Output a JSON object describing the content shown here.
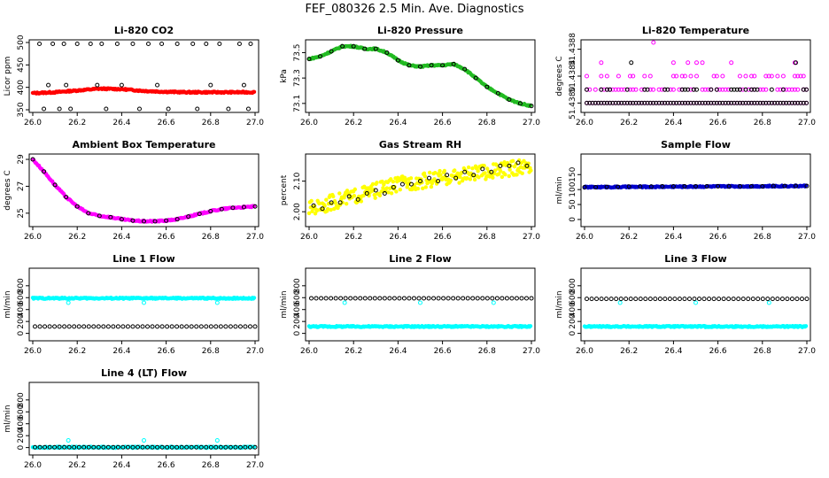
{
  "main_title": "FEF_080326  2.5 Min. Ave. Diagnostics",
  "colors": {
    "red": "#ff0000",
    "green": "#22bb22",
    "magenta": "#ff00ff",
    "yellow": "#ffff00",
    "blue": "#0000cc",
    "cyan": "#00ffff",
    "black": "#000000"
  },
  "chart_data": [
    {
      "type": "scatter",
      "title": "Li-820 CO2",
      "xlabel": "",
      "ylabel": "Licor ppm",
      "xlim": [
        26.0,
        27.0
      ],
      "ylim": [
        350,
        500
      ],
      "xticks": [
        "26.0",
        "26.2",
        "26.4",
        "26.6",
        "26.8",
        "27.0"
      ],
      "yticks": [
        "350",
        "400",
        "450",
        "500"
      ],
      "series": [
        {
          "color": "red",
          "style": "dense",
          "x": [
            26.0,
            26.1,
            26.2,
            26.3,
            26.4,
            26.5,
            26.6,
            26.7,
            26.8,
            26.9,
            27.0
          ],
          "y": [
            387,
            389,
            393,
            397,
            396,
            392,
            390,
            389,
            389,
            389,
            389
          ]
        },
        {
          "color": "black",
          "style": "open",
          "x": [
            26.03,
            26.09,
            26.14,
            26.2,
            26.26,
            26.31,
            26.38,
            26.45,
            26.52,
            26.58,
            26.65,
            26.72,
            26.78,
            26.84,
            26.93,
            26.98,
            26.05,
            26.12,
            26.17,
            26.33,
            26.48,
            26.61,
            26.74,
            26.88,
            26.97,
            26.07,
            26.15,
            26.29,
            26.4,
            26.56,
            26.8,
            26.95
          ],
          "y": [
            497,
            497,
            497,
            497,
            497,
            497,
            497,
            497,
            497,
            497,
            497,
            497,
            497,
            497,
            497,
            497,
            352,
            352,
            352,
            352,
            352,
            352,
            352,
            352,
            352,
            405,
            405,
            405,
            405,
            405,
            405,
            405
          ]
        }
      ]
    },
    {
      "type": "scatter",
      "title": "Li-820 Pressure",
      "xlabel": "",
      "ylabel": "kPa",
      "xlim": [
        26.0,
        27.0
      ],
      "ylim": [
        73.05,
        73.58
      ],
      "xticks": [
        "26.0",
        "26.2",
        "26.4",
        "26.6",
        "26.8",
        "27.0"
      ],
      "yticks": [
        "73.1",
        "73.3",
        "73.5"
      ],
      "yticks_at": [
        73.1,
        73.3,
        73.5
      ],
      "series": [
        {
          "color": "green",
          "style": "dense",
          "x": [
            26.0,
            26.05,
            26.1,
            26.15,
            26.2,
            26.25,
            26.3,
            26.35,
            26.4,
            26.45,
            26.5,
            26.55,
            26.6,
            26.65,
            26.7,
            26.75,
            26.8,
            26.85,
            26.9,
            26.95,
            27.0
          ],
          "y": [
            73.45,
            73.47,
            73.51,
            73.55,
            73.55,
            73.53,
            73.53,
            73.5,
            73.44,
            73.4,
            73.39,
            73.4,
            73.4,
            73.41,
            73.37,
            73.3,
            73.23,
            73.18,
            73.13,
            73.1,
            73.08
          ]
        },
        {
          "color": "black",
          "style": "open",
          "x": [
            26.0,
            26.05,
            26.1,
            26.15,
            26.2,
            26.25,
            26.3,
            26.35,
            26.4,
            26.45,
            26.5,
            26.55,
            26.6,
            26.65,
            26.7,
            26.75,
            26.8,
            26.85,
            26.9,
            26.95,
            27.0
          ],
          "y": [
            73.45,
            73.47,
            73.51,
            73.55,
            73.55,
            73.53,
            73.53,
            73.5,
            73.44,
            73.4,
            73.39,
            73.4,
            73.4,
            73.41,
            73.37,
            73.3,
            73.23,
            73.18,
            73.13,
            73.1,
            73.08
          ]
        }
      ]
    },
    {
      "type": "scatter",
      "title": "Li-820 Temperature",
      "xlabel": "",
      "ylabel": "degrees C",
      "xlim": [
        26.0,
        27.0
      ],
      "ylim": [
        51.4379,
        51.4389
      ],
      "xticks": [
        "26.0",
        "26.2",
        "26.4",
        "26.6",
        "26.8",
        "27.0"
      ],
      "yticks": [
        "51.4380",
        "51.4384",
        "51.4388"
      ],
      "yticks_at": [
        51.438,
        51.4384,
        51.4388
      ],
      "series": [
        {
          "color": "magenta",
          "style": "rows",
          "rows": [
            51.438,
            51.4382,
            51.4384,
            51.4386
          ],
          "density": [
            1.0,
            0.6,
            0.35,
            0.12
          ]
        },
        {
          "color": "black",
          "style": "rows",
          "rows": [
            51.438,
            51.4382
          ],
          "density": [
            1.0,
            0.45
          ]
        },
        {
          "color": "magenta",
          "style": "open",
          "x": [
            26.31
          ],
          "y": [
            51.4389
          ]
        },
        {
          "color": "black",
          "style": "open",
          "x": [
            26.21,
            26.95
          ],
          "y": [
            51.4386,
            51.4386
          ]
        }
      ]
    },
    {
      "type": "scatter",
      "title": "Ambient Box Temperature",
      "xlabel": "",
      "ylabel": "degrees C",
      "xlim": [
        26.0,
        27.0
      ],
      "ylim": [
        24.2,
        29.2
      ],
      "xticks": [
        "26.0",
        "26.2",
        "26.4",
        "26.6",
        "26.8",
        "27.0"
      ],
      "yticks": [
        "25",
        "27",
        "29"
      ],
      "yticks_at": [
        25,
        27,
        29
      ],
      "series": [
        {
          "color": "magenta",
          "style": "dense",
          "x": [
            26.0,
            26.05,
            26.1,
            26.15,
            26.2,
            26.25,
            26.3,
            26.35,
            26.4,
            26.45,
            26.5,
            26.55,
            26.6,
            26.65,
            26.7,
            26.75,
            26.8,
            26.85,
            26.9,
            26.95,
            27.0
          ],
          "y": [
            29.0,
            28.1,
            27.1,
            26.2,
            25.5,
            25.0,
            24.8,
            24.7,
            24.55,
            24.45,
            24.4,
            24.4,
            24.45,
            24.55,
            24.75,
            24.95,
            25.15,
            25.3,
            25.4,
            25.45,
            25.5
          ]
        },
        {
          "color": "black",
          "style": "open",
          "x": [
            26.0,
            26.05,
            26.1,
            26.15,
            26.2,
            26.25,
            26.3,
            26.35,
            26.4,
            26.45,
            26.5,
            26.55,
            26.6,
            26.65,
            26.7,
            26.75,
            26.8,
            26.85,
            26.9,
            26.95,
            27.0
          ],
          "y": [
            29.0,
            28.1,
            27.1,
            26.2,
            25.5,
            25.0,
            24.8,
            24.7,
            24.55,
            24.45,
            24.4,
            24.4,
            24.45,
            24.55,
            24.75,
            24.95,
            25.15,
            25.3,
            25.4,
            25.45,
            25.5
          ]
        }
      ]
    },
    {
      "type": "scatter",
      "title": "Gas Stream RH",
      "xlabel": "",
      "ylabel": "percent",
      "xlim": [
        26.0,
        27.0
      ],
      "ylim": [
        1.96,
        2.18
      ],
      "xticks": [
        "26.0",
        "26.2",
        "26.4",
        "26.6",
        "26.8",
        "27.0"
      ],
      "yticks": [
        "2.00",
        "2.10"
      ],
      "yticks_at": [
        2.0,
        2.1
      ],
      "series": [
        {
          "color": "yellow",
          "style": "band",
          "x": [
            26.0,
            26.1,
            26.2,
            26.3,
            26.4,
            26.5,
            26.6,
            26.7,
            26.8,
            26.9,
            27.0
          ],
          "y": [
            2.01,
            2.03,
            2.05,
            2.07,
            2.09,
            2.1,
            2.11,
            2.12,
            2.13,
            2.14,
            2.15
          ],
          "spread": 0.025
        },
        {
          "color": "black",
          "style": "open",
          "x": [
            26.02,
            26.06,
            26.1,
            26.14,
            26.18,
            26.22,
            26.26,
            26.3,
            26.34,
            26.38,
            26.42,
            26.46,
            26.5,
            26.54,
            26.58,
            26.62,
            26.66,
            26.7,
            26.74,
            26.78,
            26.82,
            26.86,
            26.9,
            26.94,
            26.98
          ],
          "y": [
            2.02,
            2.01,
            2.03,
            2.03,
            2.05,
            2.04,
            2.06,
            2.07,
            2.06,
            2.08,
            2.09,
            2.09,
            2.1,
            2.11,
            2.1,
            2.12,
            2.11,
            2.13,
            2.12,
            2.14,
            2.13,
            2.15,
            2.15,
            2.16,
            2.15
          ]
        }
      ]
    },
    {
      "type": "scatter",
      "title": "Sample Flow",
      "xlabel": "",
      "ylabel": "ml/min",
      "xlim": [
        26.0,
        27.0
      ],
      "ylim": [
        -15,
        210
      ],
      "xticks": [
        "26.0",
        "26.2",
        "26.4",
        "26.6",
        "26.8",
        "27.0"
      ],
      "yticks": [
        "0",
        "50",
        "100",
        "150"
      ],
      "yticks_at": [
        0,
        50,
        100,
        150
      ],
      "series": [
        {
          "color": "blue",
          "style": "dense",
          "x": [
            26.0,
            27.0
          ],
          "y": [
            108,
            112
          ]
        },
        {
          "color": "black",
          "style": "open",
          "x": [
            26.0,
            26.05,
            26.1,
            26.15,
            26.2,
            26.25,
            26.3,
            26.35,
            26.4,
            26.45,
            26.5,
            26.55,
            26.6,
            26.65,
            26.7,
            26.75,
            26.8,
            26.85,
            26.9,
            26.95,
            27.0
          ],
          "y": [
            108,
            108,
            109,
            109,
            110,
            110,
            110,
            111,
            111,
            111,
            111,
            111,
            111,
            111,
            111,
            111,
            111,
            112,
            112,
            112,
            112
          ]
        }
      ]
    },
    {
      "type": "scatter",
      "title": "Line 1 Flow",
      "xlabel": "",
      "ylabel": "ml/min",
      "xlim": [
        26.0,
        27.0
      ],
      "ylim": [
        -80,
        1050
      ],
      "xticks": [
        "26.0",
        "26.2",
        "26.4",
        "26.6",
        "26.8",
        "27.0"
      ],
      "yticks": [
        "0",
        "200",
        "400",
        "600",
        "800"
      ],
      "yticks_at": [
        0,
        200,
        400,
        600,
        800
      ],
      "series": [
        {
          "color": "cyan",
          "style": "dense",
          "x": [
            26.0,
            27.0
          ],
          "y": [
            590,
            590
          ]
        },
        {
          "color": "cyan",
          "style": "open",
          "x": [
            26.16,
            26.5,
            26.83
          ],
          "y": [
            515,
            515,
            515
          ]
        },
        {
          "color": "black",
          "style": "open-line",
          "x": [
            26.0,
            27.0
          ],
          "y": [
            115,
            115
          ]
        }
      ]
    },
    {
      "type": "scatter",
      "title": "Line 2 Flow",
      "xlabel": "",
      "ylabel": "ml/min",
      "xlim": [
        26.0,
        27.0
      ],
      "ylim": [
        -80,
        1050
      ],
      "xticks": [
        "26.0",
        "26.2",
        "26.4",
        "26.6",
        "26.8",
        "27.0"
      ],
      "yticks": [
        "0",
        "200",
        "400",
        "600",
        "800"
      ],
      "yticks_at": [
        0,
        200,
        400,
        600,
        800
      ],
      "series": [
        {
          "color": "cyan",
          "style": "dense",
          "x": [
            26.0,
            27.0
          ],
          "y": [
            115,
            115
          ]
        },
        {
          "color": "cyan",
          "style": "open",
          "x": [
            26.16,
            26.5,
            26.83
          ],
          "y": [
            515,
            515,
            515
          ]
        },
        {
          "color": "black",
          "style": "open-line",
          "x": [
            26.0,
            27.0
          ],
          "y": [
            590,
            590
          ]
        }
      ]
    },
    {
      "type": "scatter",
      "title": "Line 3 Flow",
      "xlabel": "",
      "ylabel": "ml/min",
      "xlim": [
        26.0,
        27.0
      ],
      "ylim": [
        -80,
        1050
      ],
      "xticks": [
        "26.0",
        "26.2",
        "26.4",
        "26.6",
        "26.8",
        "27.0"
      ],
      "yticks": [
        "0",
        "200",
        "400",
        "600",
        "800"
      ],
      "yticks_at": [
        0,
        200,
        400,
        600,
        800
      ],
      "series": [
        {
          "color": "cyan",
          "style": "dense",
          "x": [
            26.0,
            27.0
          ],
          "y": [
            115,
            115
          ]
        },
        {
          "color": "cyan",
          "style": "open",
          "x": [
            26.16,
            26.5,
            26.83
          ],
          "y": [
            515,
            515,
            515
          ]
        },
        {
          "color": "black",
          "style": "open-line",
          "x": [
            26.0,
            27.0
          ],
          "y": [
            580,
            580
          ]
        }
      ]
    },
    {
      "type": "scatter",
      "title": "Line 4 (LT) Flow",
      "xlabel": "",
      "ylabel": "ml/min",
      "xlim": [
        26.0,
        27.0
      ],
      "ylim": [
        -80,
        1050
      ],
      "xticks": [
        "26.0",
        "26.2",
        "26.4",
        "26.6",
        "26.8",
        "27.0"
      ],
      "yticks": [
        "0",
        "200",
        "400",
        "600",
        "800"
      ],
      "yticks_at": [
        0,
        200,
        400,
        600,
        800
      ],
      "series": [
        {
          "color": "cyan",
          "style": "dense",
          "x": [
            26.0,
            27.0
          ],
          "y": [
            5,
            5
          ]
        },
        {
          "color": "cyan",
          "style": "open",
          "x": [
            26.16,
            26.5,
            26.83
          ],
          "y": [
            120,
            120,
            120
          ]
        },
        {
          "color": "black",
          "style": "open-line",
          "x": [
            26.0,
            27.0
          ],
          "y": [
            5,
            5
          ]
        }
      ]
    }
  ]
}
